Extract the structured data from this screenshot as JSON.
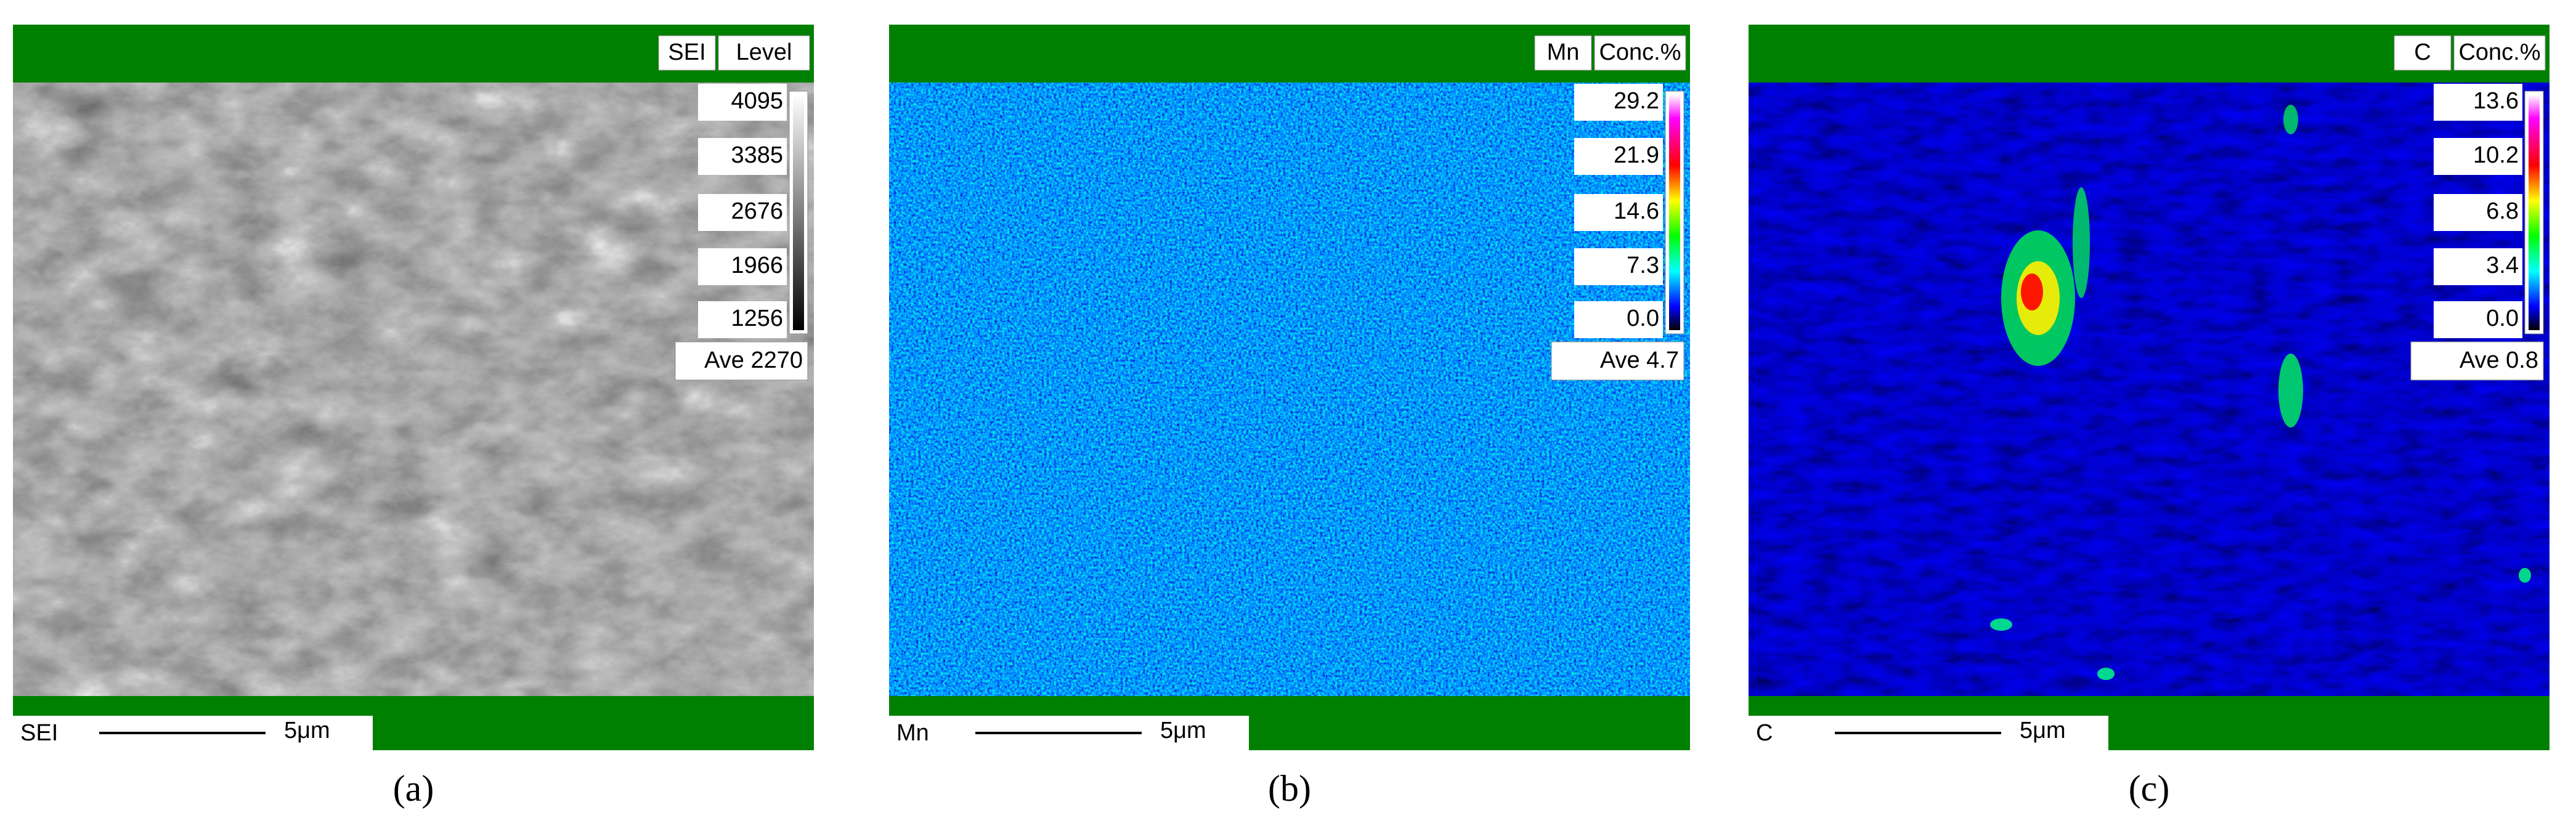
{
  "panels": [
    {
      "top_tags": [
        "SEI",
        "Level"
      ],
      "scale_ticks": [
        "4095",
        "3385",
        "2676",
        "1966",
        "1256"
      ],
      "average": "Ave 2270",
      "bottom_label": "SEI",
      "scale_bar": "5μm",
      "caption": "(a)"
    },
    {
      "top_tags": [
        "Mn",
        "Conc.%"
      ],
      "scale_ticks": [
        "29.2",
        "21.9",
        "14.6",
        "7.3",
        "0.0"
      ],
      "average": "Ave 4.7",
      "bottom_label": "Mn",
      "scale_bar": "5μm",
      "caption": "(b)"
    },
    {
      "top_tags": [
        "C",
        "Conc.%"
      ],
      "scale_ticks": [
        "13.6",
        "10.2",
        "6.8",
        "3.4",
        "0.0"
      ],
      "average": "Ave 0.8",
      "bottom_label": "C",
      "scale_bar": "5μm",
      "caption": "(c)"
    }
  ]
}
